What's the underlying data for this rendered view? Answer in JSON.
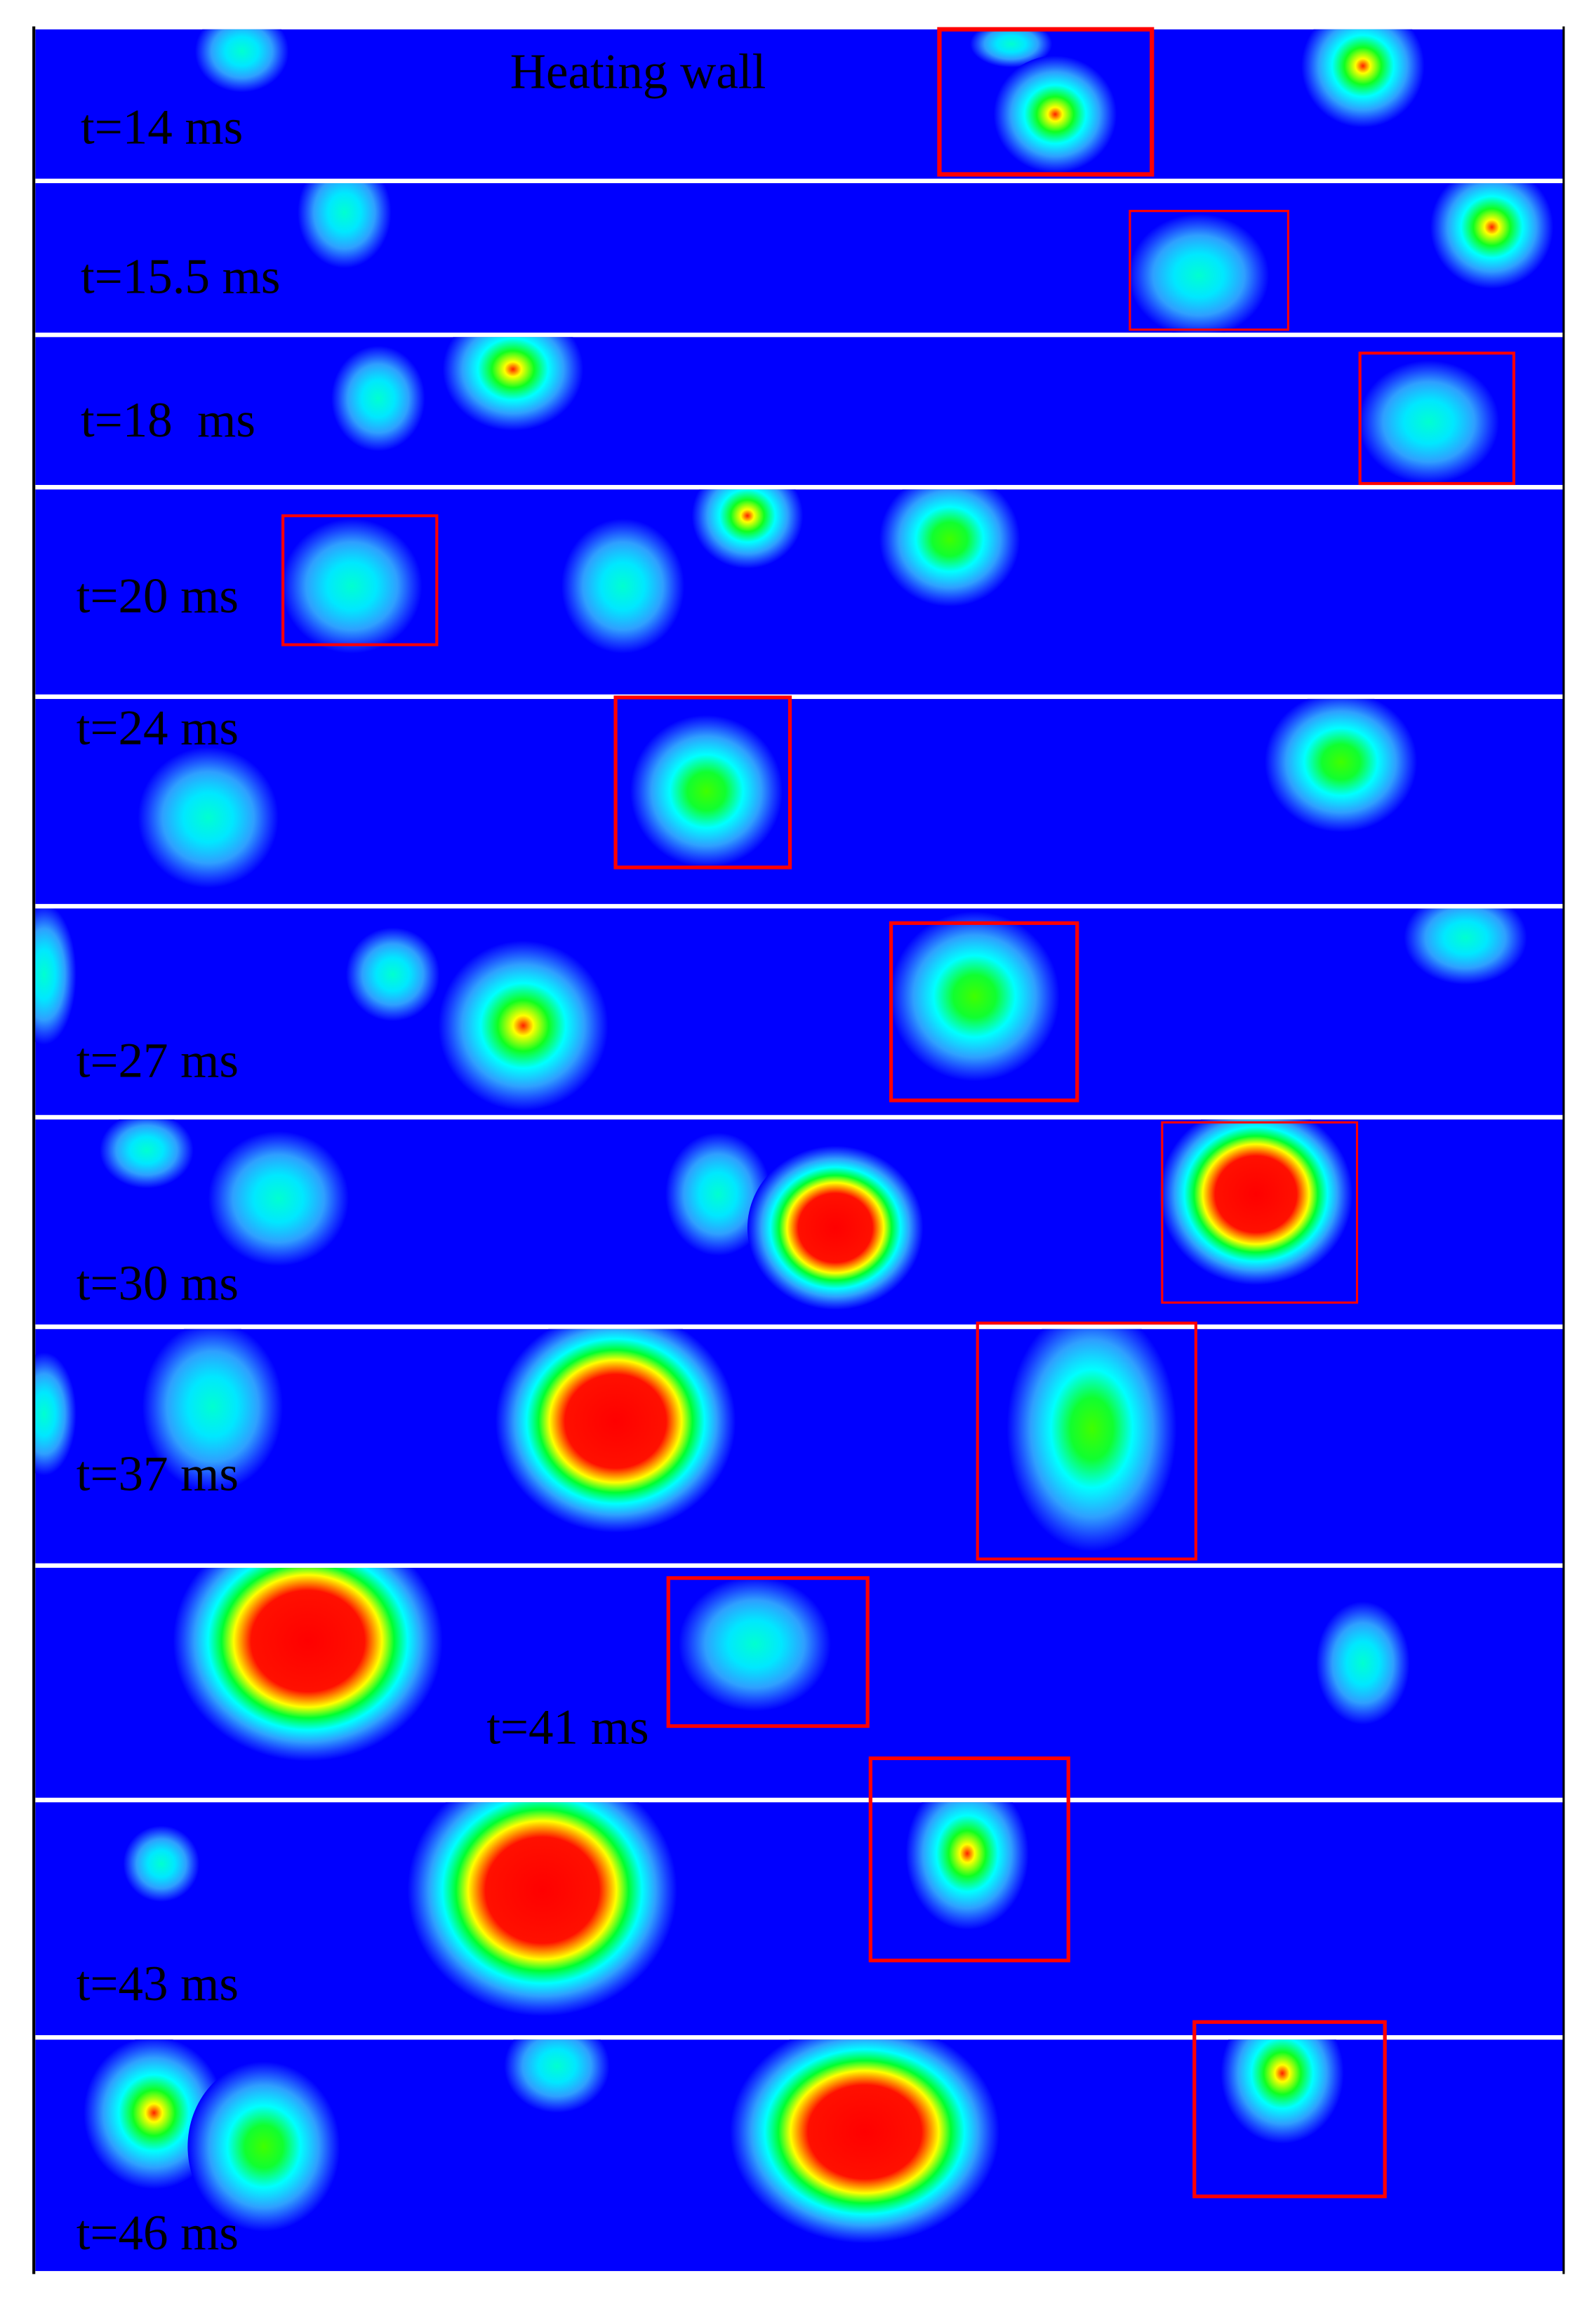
{
  "heating_wall_label": "Heating wall",
  "panels": [
    {
      "label": "t=14 ms"
    },
    {
      "label": "t=15.5 ms"
    },
    {
      "label": "t=18  ms"
    },
    {
      "label": "t=20 ms"
    },
    {
      "label": "t=24 ms"
    },
    {
      "label": "t=27 ms"
    },
    {
      "label": "t=30 ms"
    },
    {
      "label": "t=37 ms"
    },
    {
      "label": "t=41 ms"
    },
    {
      "label": "t=43 ms"
    },
    {
      "label": "t=46 ms"
    }
  ]
}
